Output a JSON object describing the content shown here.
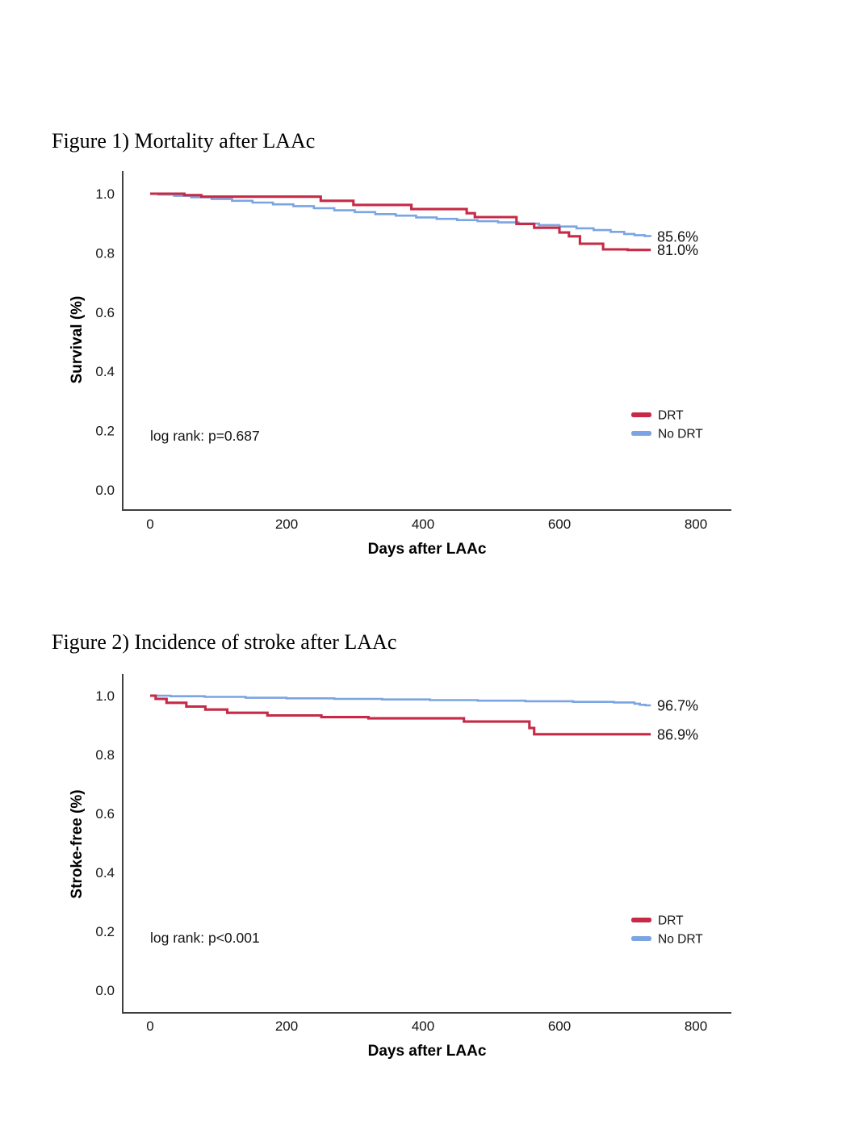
{
  "page": {
    "background": "#ffffff"
  },
  "chart_data": [
    {
      "type": "line",
      "subtype": "kaplan-meier-step",
      "title": "Figure 1) Mortality after LAAc",
      "xlabel": "Days after LAAc",
      "ylabel": "Survival (%)",
      "annotation": "log rank: p=0.687",
      "xticks": [
        0,
        200,
        400,
        600,
        800
      ],
      "yticks": [
        1.0,
        0.8,
        0.6,
        0.4,
        0.2,
        0.0
      ],
      "xlim": [
        -40,
        852
      ],
      "ylim": [
        -0.07,
        1.08
      ],
      "grid": false,
      "legend_position": "right-middle",
      "legend": [
        {
          "label": "DRT",
          "color": "#c62a46"
        },
        {
          "label": "No DRT",
          "color": "#7aa4e2"
        }
      ],
      "series": [
        {
          "name": "DRT",
          "color": "#c62a46",
          "end_label": "81.0%",
          "final_value": 0.81,
          "points": [
            [
              0,
              1.0
            ],
            [
              50,
              0.995
            ],
            [
              75,
              0.99
            ],
            [
              250,
              0.976
            ],
            [
              298,
              0.962
            ],
            [
              383,
              0.948
            ],
            [
              464,
              0.934
            ],
            [
              476,
              0.921
            ],
            [
              537,
              0.898
            ],
            [
              563,
              0.885
            ],
            [
              600,
              0.869
            ],
            [
              614,
              0.856
            ],
            [
              630,
              0.831
            ],
            [
              664,
              0.812
            ],
            [
              700,
              0.81
            ],
            [
              734,
              0.81
            ]
          ]
        },
        {
          "name": "No DRT",
          "color": "#7aa4e2",
          "end_label": "85.6%",
          "final_value": 0.856,
          "points": [
            [
              0,
              1.0
            ],
            [
              12,
              0.997
            ],
            [
              35,
              0.993
            ],
            [
              60,
              0.988
            ],
            [
              90,
              0.982
            ],
            [
              120,
              0.976
            ],
            [
              150,
              0.97
            ],
            [
              180,
              0.964
            ],
            [
              210,
              0.958
            ],
            [
              240,
              0.951
            ],
            [
              270,
              0.944
            ],
            [
              300,
              0.938
            ],
            [
              330,
              0.931
            ],
            [
              360,
              0.926
            ],
            [
              390,
              0.92
            ],
            [
              420,
              0.915
            ],
            [
              450,
              0.911
            ],
            [
              480,
              0.907
            ],
            [
              510,
              0.903
            ],
            [
              540,
              0.899
            ],
            [
              570,
              0.894
            ],
            [
              600,
              0.889
            ],
            [
              625,
              0.883
            ],
            [
              650,
              0.877
            ],
            [
              675,
              0.871
            ],
            [
              695,
              0.864
            ],
            [
              710,
              0.86
            ],
            [
              725,
              0.857
            ],
            [
              734,
              0.856
            ]
          ]
        }
      ]
    },
    {
      "type": "line",
      "subtype": "kaplan-meier-step",
      "title": "Figure 2) Incidence of stroke after LAAc",
      "xlabel": "Days after LAAc",
      "ylabel": "Stroke-free (%)",
      "annotation": "log rank: p<0.001",
      "xticks": [
        0,
        200,
        400,
        600,
        800
      ],
      "yticks": [
        1.0,
        0.8,
        0.6,
        0.4,
        0.2,
        0.0
      ],
      "xlim": [
        -40,
        852
      ],
      "ylim": [
        -0.07,
        1.08
      ],
      "grid": false,
      "legend_position": "right-middle",
      "legend": [
        {
          "label": "DRT",
          "color": "#c62a46"
        },
        {
          "label": "No DRT",
          "color": "#7aa4e2"
        }
      ],
      "series": [
        {
          "name": "DRT",
          "color": "#c62a46",
          "end_label": "86.9%",
          "final_value": 0.869,
          "points": [
            [
              0,
              1.0
            ],
            [
              8,
              0.989
            ],
            [
              24,
              0.976
            ],
            [
              53,
              0.963
            ],
            [
              81,
              0.953
            ],
            [
              113,
              0.942
            ],
            [
              172,
              0.933
            ],
            [
              251,
              0.927
            ],
            [
              320,
              0.923
            ],
            [
              460,
              0.912
            ],
            [
              556,
              0.89
            ],
            [
              563,
              0.869
            ],
            [
              734,
              0.869
            ]
          ]
        },
        {
          "name": "No DRT",
          "color": "#7aa4e2",
          "end_label": "96.7%",
          "final_value": 0.967,
          "points": [
            [
              0,
              1.0
            ],
            [
              30,
              0.998
            ],
            [
              80,
              0.996
            ],
            [
              140,
              0.993
            ],
            [
              200,
              0.991
            ],
            [
              270,
              0.989
            ],
            [
              340,
              0.987
            ],
            [
              410,
              0.985
            ],
            [
              480,
              0.983
            ],
            [
              550,
              0.981
            ],
            [
              620,
              0.979
            ],
            [
              680,
              0.977
            ],
            [
              710,
              0.973
            ],
            [
              718,
              0.969
            ],
            [
              726,
              0.967
            ],
            [
              734,
              0.967
            ]
          ]
        }
      ]
    }
  ]
}
